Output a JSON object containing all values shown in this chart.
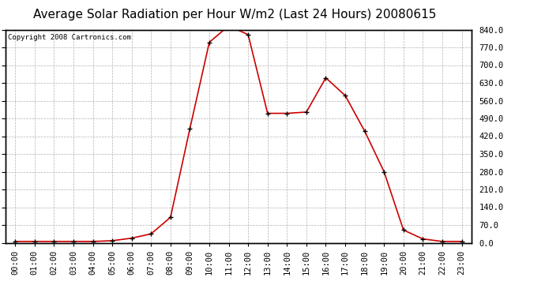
{
  "title": "Average Solar Radiation per Hour W/m2 (Last 24 Hours) 20080615",
  "copyright": "Copyright 2008 Cartronics.com",
  "hours": [
    "00:00",
    "01:00",
    "02:00",
    "03:00",
    "04:00",
    "05:00",
    "06:00",
    "07:00",
    "08:00",
    "09:00",
    "10:00",
    "11:00",
    "12:00",
    "13:00",
    "14:00",
    "15:00",
    "16:00",
    "17:00",
    "18:00",
    "19:00",
    "20:00",
    "21:00",
    "22:00",
    "23:00"
  ],
  "values": [
    5,
    5,
    5,
    5,
    5,
    8,
    18,
    35,
    100,
    450,
    790,
    855,
    820,
    510,
    510,
    515,
    650,
    580,
    440,
    280,
    50,
    15,
    5,
    5
  ],
  "line_color": "#cc0000",
  "marker_color": "#000000",
  "bg_color": "#ffffff",
  "plot_bg_color": "#ffffff",
  "grid_color": "#aaaaaa",
  "y_ticks": [
    0.0,
    70.0,
    140.0,
    210.0,
    280.0,
    350.0,
    420.0,
    490.0,
    560.0,
    630.0,
    700.0,
    770.0,
    840.0
  ],
  "ylim": [
    0,
    840
  ],
  "title_fontsize": 11,
  "tick_fontsize": 7.5,
  "copyright_fontsize": 6.5
}
